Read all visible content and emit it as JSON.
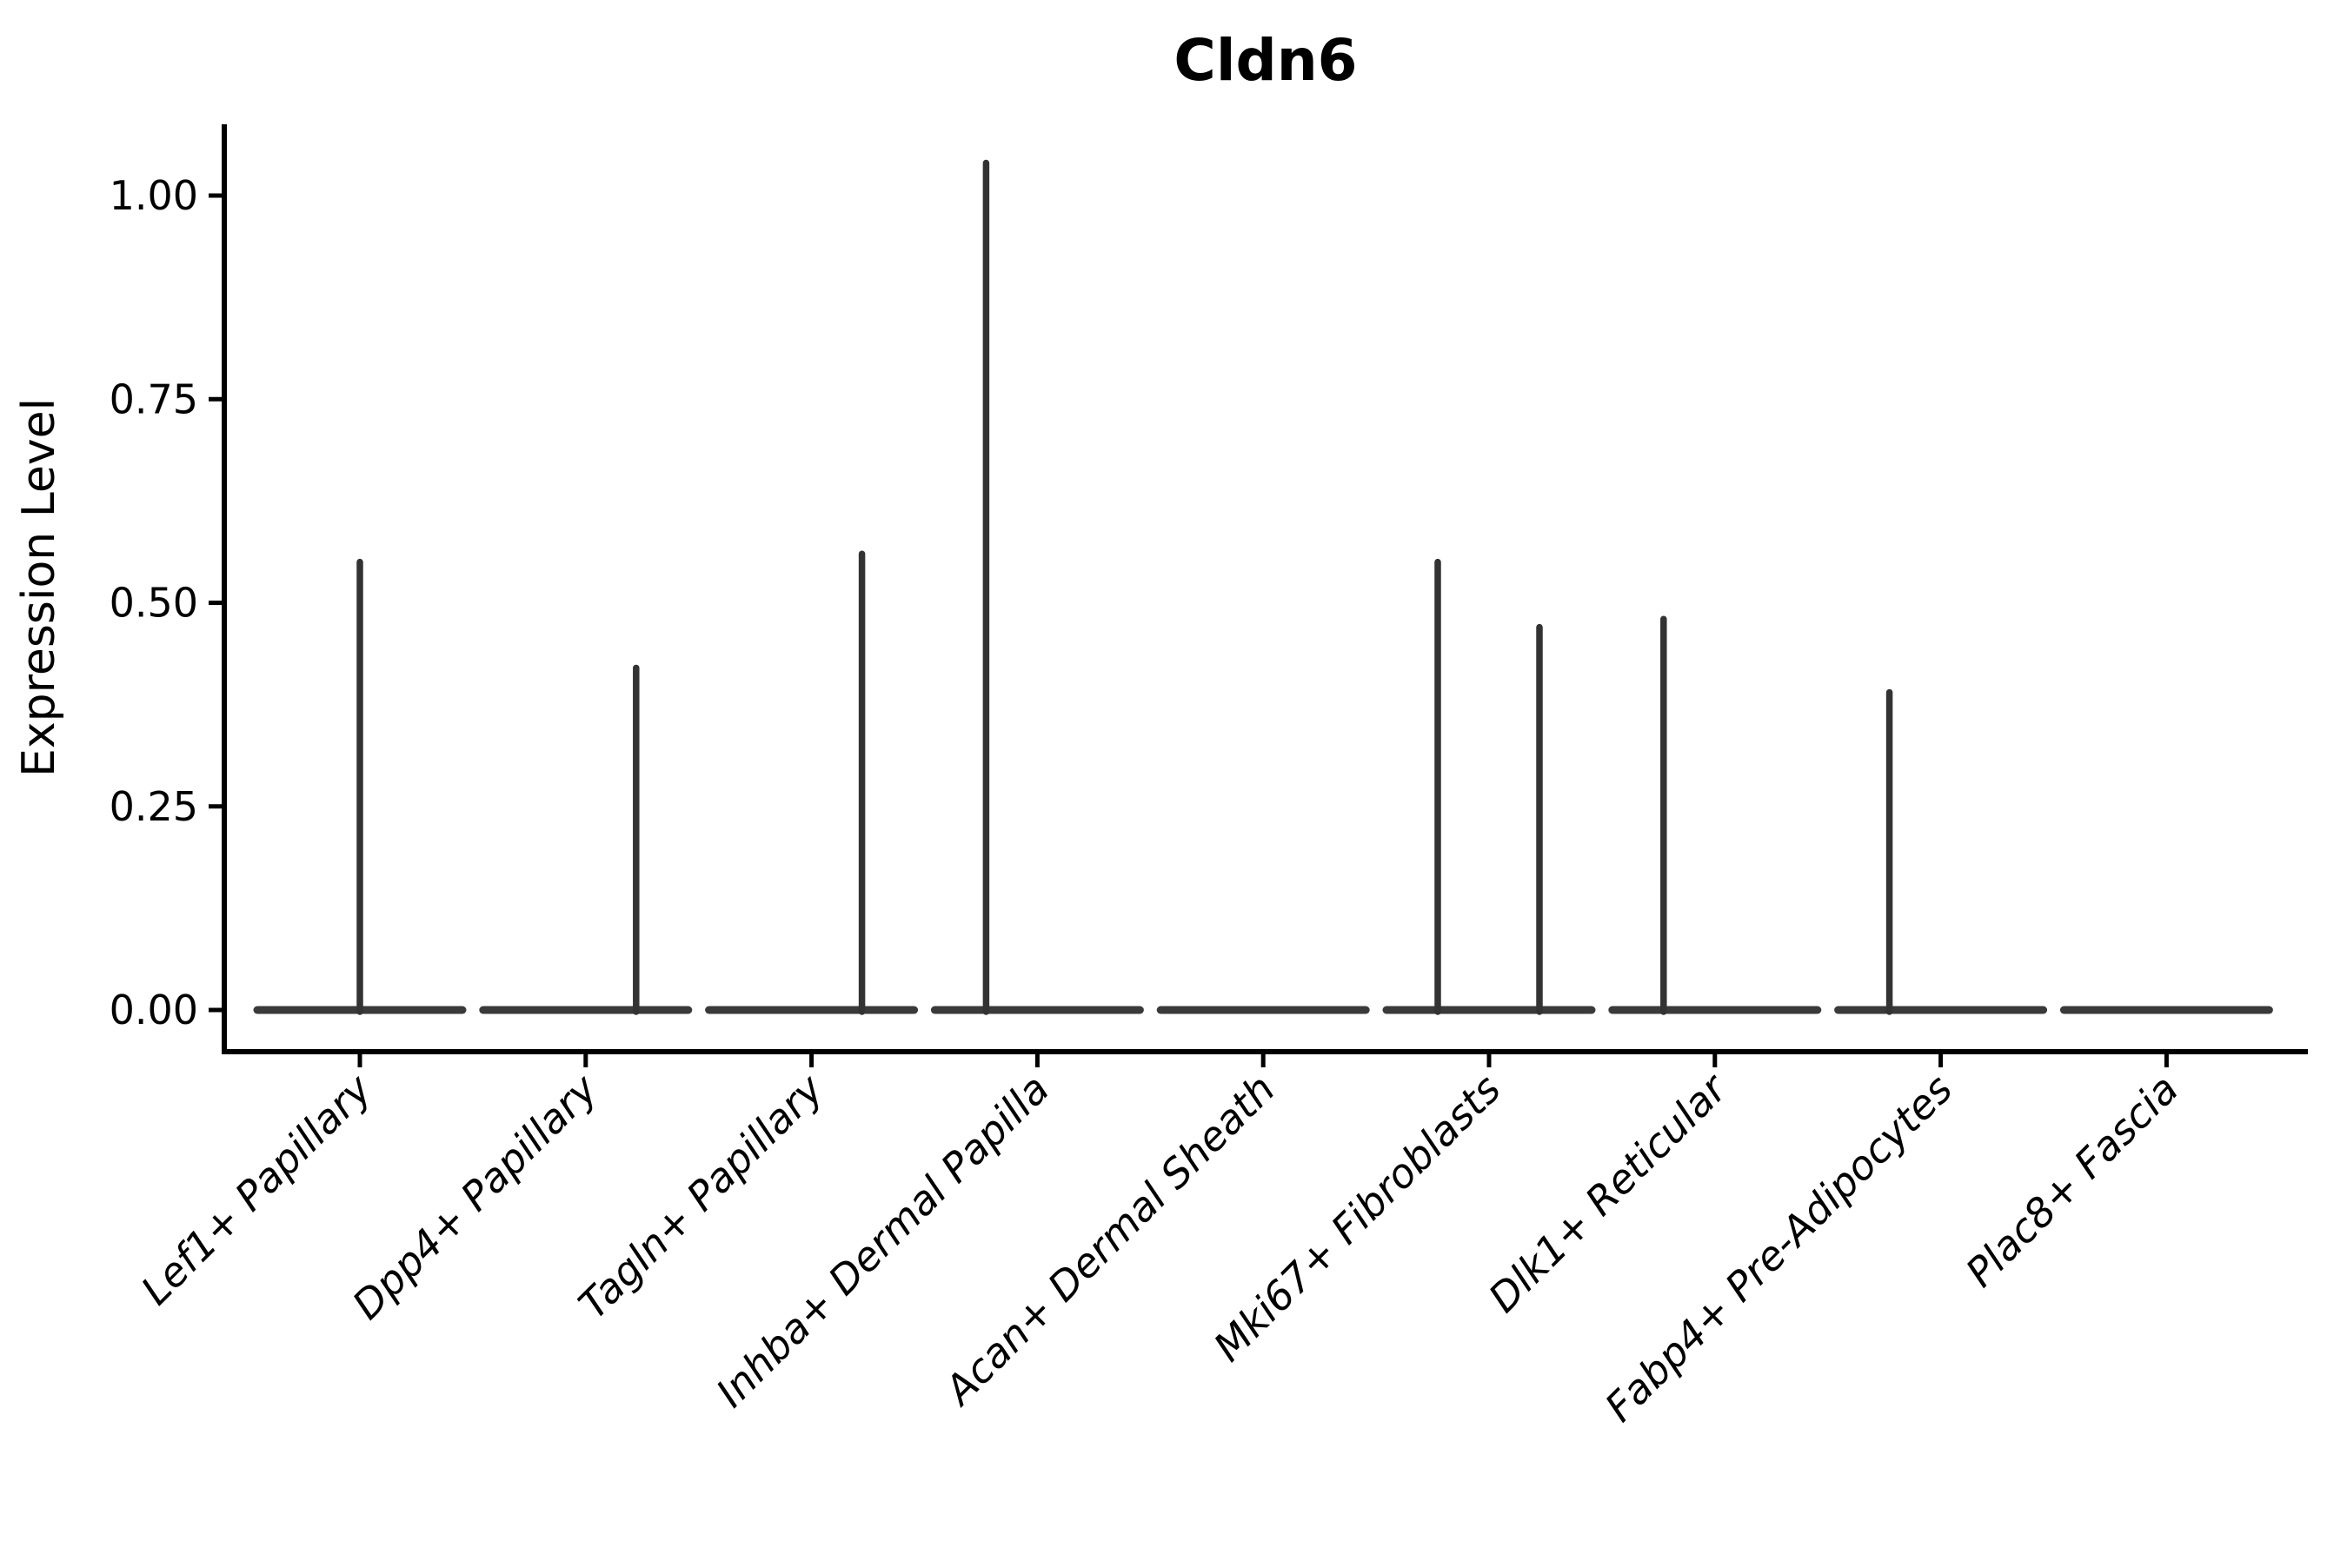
{
  "title": "Cldn6",
  "chart_data": {
    "type": "violin",
    "title": "Cldn6",
    "xlabel": "",
    "ylabel": "Expression Level",
    "grid": false,
    "legend": false,
    "ylim": [
      -0.05,
      1.09
    ],
    "yticks": [
      0,
      0.25,
      0.5,
      0.75,
      1.0
    ],
    "ytick_labels": [
      "0.00",
      "0.25",
      "0.50",
      "0.75",
      "1.00"
    ],
    "categories": [
      "Lef1+ Papillary",
      "Dpp4+ Papillary",
      "Tagln+ Papillary",
      "Inhba+ Dermal Papilla",
      "Acan+ Dermal Sheath",
      "Mki67+ Fibroblasts",
      "Dlk1+ Reticular",
      "Fabp4+ Pre-Adipocytes",
      "Plac8+ Fascia"
    ],
    "violins": [
      {
        "category": "Lef1+ Papillary",
        "baseline_value": 0,
        "max_expression": 0.55,
        "spikes": [
          {
            "dx": 0,
            "value": 0.55
          }
        ]
      },
      {
        "category": "Dpp4+ Papillary",
        "baseline_value": 0,
        "max_expression": 0.42,
        "spikes": [
          {
            "dx": 58,
            "value": 0.42
          }
        ]
      },
      {
        "category": "Tagln+ Papillary",
        "baseline_value": 0,
        "max_expression": 0.56,
        "spikes": [
          {
            "dx": 58,
            "value": 0.56
          }
        ]
      },
      {
        "category": "Inhba+ Dermal Papilla",
        "baseline_value": 0,
        "max_expression": 1.04,
        "spikes": [
          {
            "dx": -59,
            "value": 1.04
          }
        ]
      },
      {
        "category": "Acan+ Dermal Sheath",
        "baseline_value": 0,
        "max_expression": 0.0,
        "spikes": []
      },
      {
        "category": "Mki67+ Fibroblasts",
        "baseline_value": 0,
        "max_expression": 0.55,
        "spikes": [
          {
            "dx": -59,
            "value": 0.55
          },
          {
            "dx": 58,
            "value": 0.47
          }
        ]
      },
      {
        "category": "Dlk1+ Reticular",
        "baseline_value": 0,
        "max_expression": 0.48,
        "spikes": [
          {
            "dx": -59,
            "value": 0.48
          }
        ]
      },
      {
        "category": "Fabp4+ Pre-Adipocytes",
        "baseline_value": 0,
        "max_expression": 0.39,
        "spikes": [
          {
            "dx": -59,
            "value": 0.39
          }
        ]
      },
      {
        "category": "Plac8+ Fascia",
        "baseline_value": 0,
        "max_expression": 0.0,
        "spikes": []
      }
    ],
    "colors": {
      "violin_stroke": "#333333",
      "violin_base": "#3a3a3a",
      "axis": "#000000",
      "text": "#000000"
    }
  }
}
